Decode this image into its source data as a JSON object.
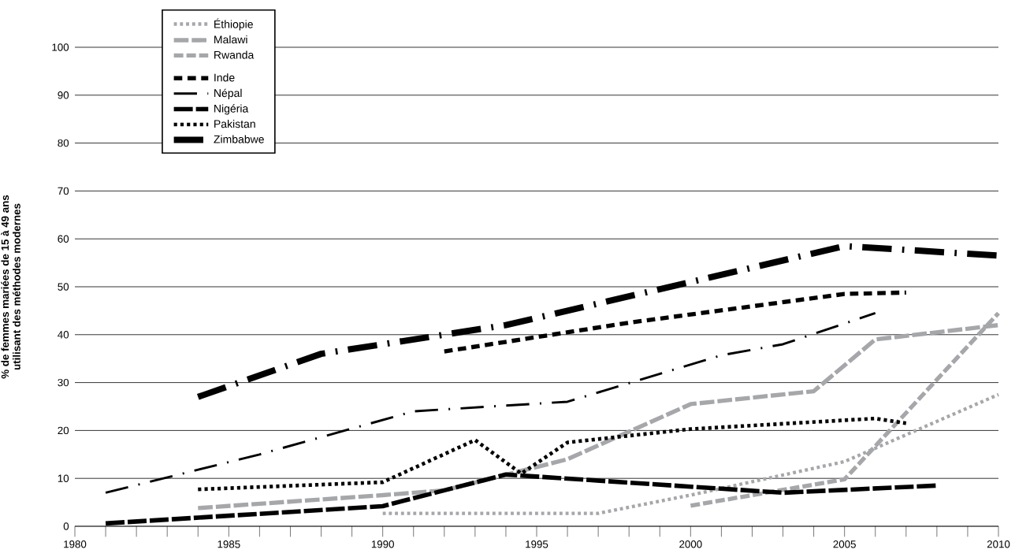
{
  "chart_data": {
    "type": "line",
    "ylabel": "% de femmes mariées de 15 à 49 ans\nutilisant des méthodes modernes",
    "xlim": [
      1980,
      2010
    ],
    "ylim": [
      0,
      100
    ],
    "xticks": [
      1980,
      {
        "value": 1981,
        "label": null
      },
      {
        "value": 1982,
        "label": null
      },
      {
        "value": 1983,
        "label": null
      },
      {
        "value": 1984,
        "label": null
      },
      1985,
      {
        "value": 1986,
        "label": null
      },
      {
        "value": 1987,
        "label": null
      },
      {
        "value": 1988,
        "label": null
      },
      {
        "value": 1989,
        "label": null
      },
      1990,
      {
        "value": 1991,
        "label": null
      },
      {
        "value": 1992,
        "label": null
      },
      {
        "value": 1993,
        "label": null
      },
      {
        "value": 1994,
        "label": null
      },
      1995,
      {
        "value": 1996,
        "label": null
      },
      {
        "value": 1997,
        "label": null
      },
      {
        "value": 1998,
        "label": null
      },
      {
        "value": 1999,
        "label": null
      },
      2000,
      {
        "value": 2001,
        "label": null
      },
      {
        "value": 2002,
        "label": null
      },
      {
        "value": 2003,
        "label": null
      },
      {
        "value": 2004,
        "label": null
      },
      2005,
      {
        "value": 2006,
        "label": null
      },
      {
        "value": 2007,
        "label": null
      },
      {
        "value": 2008,
        "label": null
      },
      {
        "value": 2009,
        "label": null
      },
      2010
    ],
    "yticks": [
      0,
      10,
      20,
      30,
      40,
      50,
      60,
      70,
      80,
      90,
      100
    ],
    "grid": "y",
    "legend": "top left",
    "series": [
      {
        "name": "Éthiopie",
        "color": "#a6a7aa",
        "line_style": "dotted",
        "x": [
          1990,
          1997,
          2000,
          2005,
          2010
        ],
        "values": [
          2.7,
          2.7,
          6.5,
          13.5,
          27.5
        ]
      },
      {
        "name": "Malawi",
        "color": "#a6a7aa",
        "line_style": "dashed",
        "x": [
          1984,
          1990,
          1992,
          1996,
          2000,
          2004,
          2006,
          2010
        ],
        "values": [
          3.8,
          6.5,
          7.5,
          14,
          25.5,
          28.2,
          39,
          42
        ]
      },
      {
        "name": "Rwanda",
        "color": "#a6a7aa",
        "line_style": "dashed",
        "x": [
          2000,
          2005,
          2010
        ],
        "values": [
          4.3,
          9.8,
          44.5
        ]
      },
      {
        "name": "Inde",
        "color": "#000000",
        "line_style": "dashed",
        "x": [
          1992,
          1998,
          2005,
          2007
        ],
        "values": [
          36.5,
          42.5,
          48.5,
          48.8
        ]
      },
      {
        "name": "Népal",
        "color": "#000000",
        "line_style": "dashed",
        "x": [
          1981,
          1986,
          1991,
          1996,
          2001,
          2003,
          2006
        ],
        "values": [
          7,
          15,
          24,
          26,
          35.7,
          38,
          44.5
        ]
      },
      {
        "name": "Nigéria",
        "color": "#000000",
        "line_style": "dashed",
        "x": [
          1981,
          1990,
          1994,
          2003,
          2008
        ],
        "values": [
          0.6,
          4.2,
          10.8,
          7,
          8.5
        ]
      },
      {
        "name": "Pakistan",
        "color": "#000000",
        "line_style": "dotted",
        "x": [
          1984,
          1990,
          1993,
          1994.5,
          1996,
          2000,
          2006,
          2007
        ],
        "values": [
          7.7,
          9.2,
          18,
          11,
          17.5,
          20.3,
          22.5,
          21.5
        ]
      },
      {
        "name": "Zimbabwe",
        "color": "#000000",
        "line_style": "dashed",
        "x": [
          1984,
          1988,
          1994,
          2005,
          2010
        ],
        "values": [
          27,
          36,
          42,
          58.5,
          56.5
        ]
      }
    ]
  }
}
